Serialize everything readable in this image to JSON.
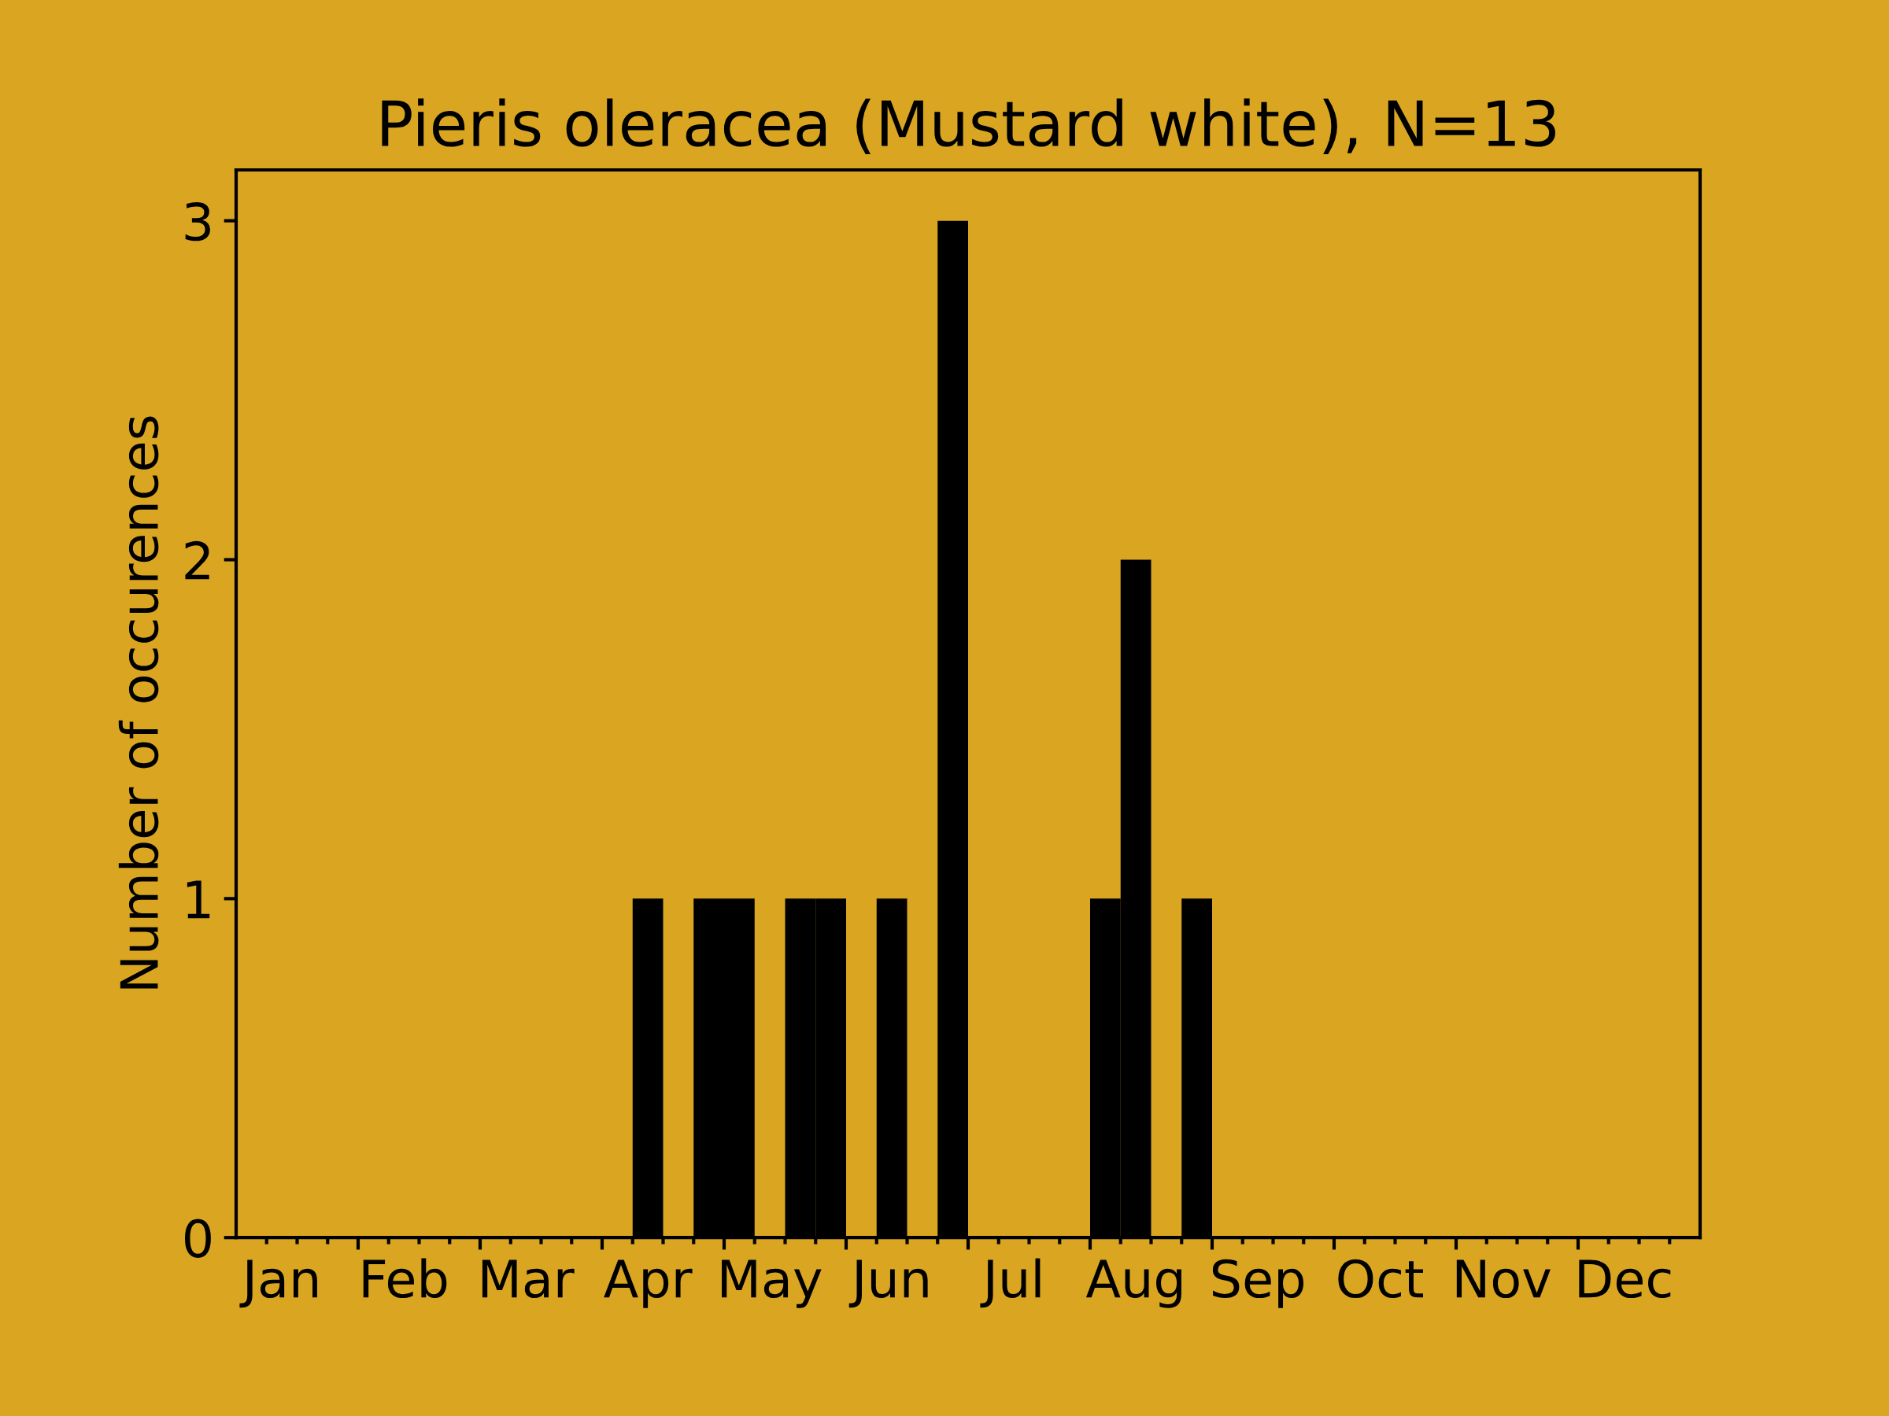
{
  "chart_data": {
    "type": "bar",
    "title": "Pieris oleracea (Mustard white), N=13",
    "ylabel": "Number of occurences",
    "categories": [
      null,
      "Jan",
      null,
      null,
      null,
      "Feb",
      null,
      null,
      null,
      "Mar",
      null,
      null,
      null,
      "Apr",
      null,
      null,
      null,
      "May",
      null,
      null,
      null,
      "Jun",
      null,
      null,
      null,
      "Jul",
      null,
      null,
      null,
      "Aug",
      null,
      null,
      null,
      "Sep",
      null,
      null,
      null,
      "Oct",
      null,
      null,
      null,
      "Nov",
      null,
      null,
      null,
      "Dec",
      null,
      null
    ],
    "values": [
      0,
      0,
      0,
      0,
      0,
      0,
      0,
      0,
      0,
      0,
      0,
      0,
      0,
      1,
      0,
      1,
      1,
      0,
      1,
      1,
      0,
      1,
      0,
      3,
      0,
      0,
      0,
      0,
      1,
      2,
      0,
      1,
      0,
      0,
      0,
      0,
      0,
      0,
      0,
      0,
      0,
      0,
      0,
      0,
      0,
      0,
      0,
      0
    ],
    "color": "#000000",
    "ylim": [
      0,
      3.15
    ],
    "yticks": [
      0,
      1,
      2,
      3
    ]
  }
}
